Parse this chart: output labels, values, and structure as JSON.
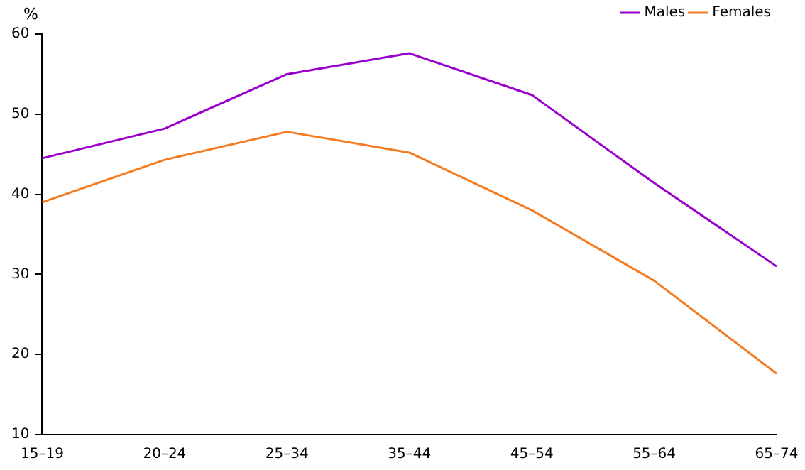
{
  "chart_data": {
    "type": "line",
    "ylabel": "%",
    "categories": [
      "15–19",
      "20–24",
      "25–34",
      "35–44",
      "45–54",
      "55–64",
      "65–74"
    ],
    "series": [
      {
        "name": "Males",
        "color": "#9900cc",
        "values": [
          44.5,
          48.2,
          55,
          57.6,
          52.4,
          41.4,
          31
        ]
      },
      {
        "name": "Females",
        "color": "#f47b20",
        "values": [
          39,
          44.3,
          47.8,
          45.2,
          38,
          29.2,
          17.6
        ]
      }
    ],
    "ylim": [
      10,
      60
    ],
    "yticks": [
      10,
      20,
      30,
      40,
      50,
      60
    ],
    "grid": false,
    "legend": "top right",
    "marker": "none",
    "line_style": "solid"
  }
}
